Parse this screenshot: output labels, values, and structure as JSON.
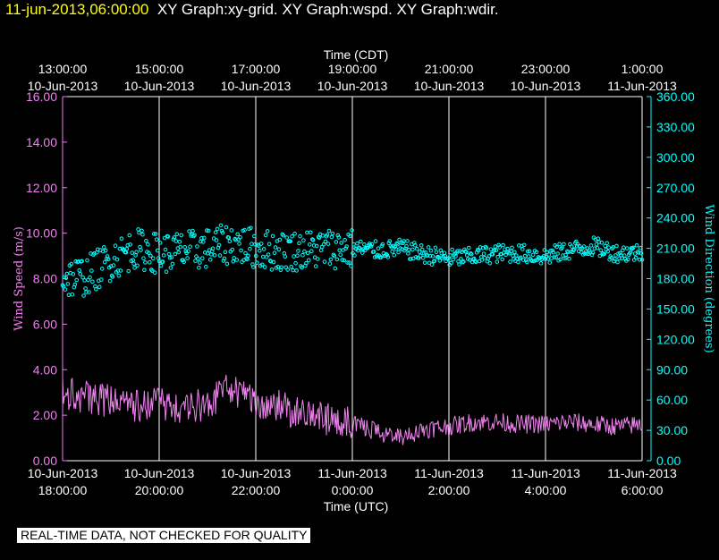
{
  "header": {
    "timestamp": "11-jun-2013,06:00:00",
    "titles": "XY Graph:xy-grid.  XY Graph:wspd.  XY Graph:wdir."
  },
  "disclaimer": "REAL-TIME DATA, NOT CHECKED FOR QUALITY",
  "colors": {
    "background": "#000000",
    "grid": "#ffffff",
    "wind_speed": "#ee82ee",
    "wind_direction": "#00ffff",
    "timestamp": "#ffff00"
  },
  "chart_data": {
    "type": "line",
    "top_axis": {
      "title": "Time (CDT)",
      "ticks": [
        {
          "t": 0,
          "time": "13:00:00",
          "date": "10-Jun-2013"
        },
        {
          "t": 2,
          "time": "15:00:00",
          "date": "10-Jun-2013"
        },
        {
          "t": 4,
          "time": "17:00:00",
          "date": "10-Jun-2013"
        },
        {
          "t": 6,
          "time": "19:00:00",
          "date": "10-Jun-2013"
        },
        {
          "t": 8,
          "time": "21:00:00",
          "date": "10-Jun-2013"
        },
        {
          "t": 10,
          "time": "23:00:00",
          "date": "10-Jun-2013"
        },
        {
          "t": 12,
          "time": "1:00:00",
          "date": "11-Jun-2013"
        }
      ]
    },
    "bottom_axis": {
      "title": "Time (UTC)",
      "ticks": [
        {
          "t": 0,
          "date": "10-Jun-2013",
          "time": "18:00:00"
        },
        {
          "t": 2,
          "date": "10-Jun-2013",
          "time": "20:00:00"
        },
        {
          "t": 4,
          "date": "10-Jun-2013",
          "time": "22:00:00"
        },
        {
          "t": 6,
          "date": "11-Jun-2013",
          "time": "0:00:00"
        },
        {
          "t": 8,
          "date": "11-Jun-2013",
          "time": "2:00:00"
        },
        {
          "t": 10,
          "date": "11-Jun-2013",
          "time": "4:00:00"
        },
        {
          "t": 12,
          "date": "11-Jun-2013",
          "time": "6:00:00"
        }
      ]
    },
    "left_axis": {
      "label": "Wind Speed (m/s)",
      "ylim": [
        0,
        16
      ],
      "ticks": [
        "0.00",
        "2.00",
        "4.00",
        "6.00",
        "8.00",
        "10.00",
        "12.00",
        "14.00",
        "16.00"
      ]
    },
    "right_axis": {
      "label": "Wind Direction (degrees)",
      "ylim": [
        0,
        360
      ],
      "ticks": [
        "0.00",
        "30.00",
        "60.00",
        "90.00",
        "120.00",
        "150.00",
        "180.00",
        "210.00",
        "240.00",
        "270.00",
        "300.00",
        "330.00",
        "360.00"
      ]
    },
    "grid": true,
    "series": [
      {
        "name": "wspd",
        "style": "line",
        "axis": "left",
        "x": [
          0,
          0.5,
          1,
          1.5,
          2,
          2.5,
          3,
          3.5,
          4,
          4.5,
          5,
          5.5,
          6,
          6.5,
          7,
          7.5,
          8,
          8.5,
          9,
          9.5,
          10,
          10.5,
          11,
          11.5,
          12
        ],
        "values": [
          3.0,
          2.8,
          2.6,
          2.4,
          2.5,
          2.1,
          2.6,
          3.2,
          2.6,
          2.4,
          1.9,
          1.8,
          1.6,
          1.3,
          1.0,
          1.4,
          1.5,
          1.7,
          1.7,
          1.6,
          1.6,
          1.7,
          1.6,
          1.5,
          1.6
        ]
      },
      {
        "name": "wdir",
        "style": "points",
        "axis": "right",
        "x": [
          0,
          0.5,
          1,
          1.5,
          2,
          2.5,
          3,
          3.5,
          4,
          4.5,
          5,
          5.5,
          6,
          6.5,
          7,
          7.5,
          8,
          8.5,
          9,
          9.5,
          10,
          10.5,
          11,
          11.5,
          12
        ],
        "values": [
          180,
          183,
          198,
          210,
          205,
          207,
          210,
          215,
          210,
          207,
          208,
          210,
          210,
          208,
          210,
          204,
          200,
          202,
          205,
          205,
          202,
          208,
          212,
          205,
          206
        ]
      }
    ]
  }
}
